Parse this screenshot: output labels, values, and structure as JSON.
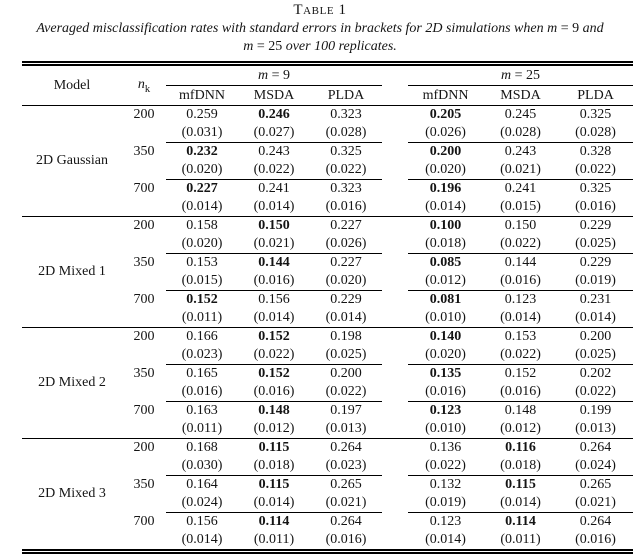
{
  "title": "Table 1",
  "caption": {
    "line1_text": "Averaged misclassification rates with standard errors in brackets for 2D simulations when ",
    "line1_math_var": "m",
    "line1_math_rest": " = 9",
    "line1_tail": " and",
    "line2_math_var": "m",
    "line2_math_rest": " = 25",
    "line2_tail": " over 100 replicates."
  },
  "table": {
    "header": {
      "model": "Model",
      "nk_var": "n",
      "nk_sub": "k",
      "m9_var": "m",
      "m9_rest": " = 9",
      "m25_var": "m",
      "m25_rest": " = 25",
      "methods": [
        "mfDNN",
        "MSDA",
        "PLDA"
      ]
    },
    "groups": [
      {
        "model": "2D Gaussian",
        "rows": [
          {
            "nk": "200",
            "m9": [
              "0.259",
              "0.246",
              "0.323"
            ],
            "m9_bold": 1,
            "m9_se": [
              "(0.031)",
              "(0.027)",
              "(0.028)"
            ],
            "m25": [
              "0.205",
              "0.245",
              "0.325"
            ],
            "m25_bold": 0,
            "m25_se": [
              "(0.026)",
              "(0.028)",
              "(0.028)"
            ]
          },
          {
            "nk": "350",
            "m9": [
              "0.232",
              "0.243",
              "0.325"
            ],
            "m9_bold": 0,
            "m9_se": [
              "(0.020)",
              "(0.022)",
              "(0.022)"
            ],
            "m25": [
              "0.200",
              "0.243",
              "0.328"
            ],
            "m25_bold": 0,
            "m25_se": [
              "(0.020)",
              "(0.021)",
              "(0.022)"
            ]
          },
          {
            "nk": "700",
            "m9": [
              "0.227",
              "0.241",
              "0.323"
            ],
            "m9_bold": 0,
            "m9_se": [
              "(0.014)",
              "(0.014)",
              "(0.016)"
            ],
            "m25": [
              "0.196",
              "0.241",
              "0.325"
            ],
            "m25_bold": 0,
            "m25_se": [
              "(0.014)",
              "(0.015)",
              "(0.016)"
            ]
          }
        ]
      },
      {
        "model": "2D Mixed 1",
        "rows": [
          {
            "nk": "200",
            "m9": [
              "0.158",
              "0.150",
              "0.227"
            ],
            "m9_bold": 1,
            "m9_se": [
              "(0.020)",
              "(0.021)",
              "(0.026)"
            ],
            "m25": [
              "0.100",
              "0.150",
              "0.229"
            ],
            "m25_bold": 0,
            "m25_se": [
              "(0.018)",
              "(0.022)",
              "(0.025)"
            ]
          },
          {
            "nk": "350",
            "m9": [
              "0.153",
              "0.144",
              "0.227"
            ],
            "m9_bold": 1,
            "m9_se": [
              "(0.015)",
              "(0.016)",
              "(0.020)"
            ],
            "m25": [
              "0.085",
              "0.144",
              "0.229"
            ],
            "m25_bold": 0,
            "m25_se": [
              "(0.012)",
              "(0.016)",
              "(0.019)"
            ]
          },
          {
            "nk": "700",
            "m9": [
              "0.152",
              "0.156",
              "0.229"
            ],
            "m9_bold": 0,
            "m9_se": [
              "(0.011)",
              "(0.014)",
              "(0.014)"
            ],
            "m25": [
              "0.081",
              "0.123",
              "0.231"
            ],
            "m25_bold": 0,
            "m25_se": [
              "(0.010)",
              "(0.014)",
              "(0.014)"
            ]
          }
        ]
      },
      {
        "model": "2D Mixed 2",
        "rows": [
          {
            "nk": "200",
            "m9": [
              "0.166",
              "0.152",
              "0.198"
            ],
            "m9_bold": 1,
            "m9_se": [
              "(0.023)",
              "(0.022)",
              "(0.025)"
            ],
            "m25": [
              "0.140",
              "0.153",
              "0.200"
            ],
            "m25_bold": 0,
            "m25_se": [
              "(0.020)",
              "(0.022)",
              "(0.025)"
            ]
          },
          {
            "nk": "350",
            "m9": [
              "0.165",
              "0.152",
              "0.200"
            ],
            "m9_bold": 1,
            "m9_se": [
              "(0.016)",
              "(0.016)",
              "(0.022)"
            ],
            "m25": [
              "0.135",
              "0.152",
              "0.202"
            ],
            "m25_bold": 0,
            "m25_se": [
              "(0.016)",
              "(0.016)",
              "(0.022)"
            ]
          },
          {
            "nk": "700",
            "m9": [
              "0.163",
              "0.148",
              "0.197"
            ],
            "m9_bold": 1,
            "m9_se": [
              "(0.011)",
              "(0.012)",
              "(0.013)"
            ],
            "m25": [
              "0.123",
              "0.148",
              "0.199"
            ],
            "m25_bold": 0,
            "m25_se": [
              "(0.010)",
              "(0.012)",
              "(0.013)"
            ]
          }
        ]
      },
      {
        "model": "2D Mixed 3",
        "rows": [
          {
            "nk": "200",
            "m9": [
              "0.168",
              "0.115",
              "0.264"
            ],
            "m9_bold": 1,
            "m9_se": [
              "(0.030)",
              "(0.018)",
              "(0.023)"
            ],
            "m25": [
              "0.136",
              "0.116",
              "0.264"
            ],
            "m25_bold": 1,
            "m25_se": [
              "(0.022)",
              "(0.018)",
              "(0.024)"
            ]
          },
          {
            "nk": "350",
            "m9": [
              "0.164",
              "0.115",
              "0.265"
            ],
            "m9_bold": 1,
            "m9_se": [
              "(0.024)",
              "(0.014)",
              "(0.021)"
            ],
            "m25": [
              "0.132",
              "0.115",
              "0.265"
            ],
            "m25_bold": 1,
            "m25_se": [
              "(0.019)",
              "(0.014)",
              "(0.021)"
            ]
          },
          {
            "nk": "700",
            "m9": [
              "0.156",
              "0.114",
              "0.264"
            ],
            "m9_bold": 1,
            "m9_se": [
              "(0.014)",
              "(0.011)",
              "(0.016)"
            ],
            "m25": [
              "0.123",
              "0.114",
              "0.264"
            ],
            "m25_bold": 1,
            "m25_se": [
              "(0.014)",
              "(0.011)",
              "(0.016)"
            ]
          }
        ]
      }
    ]
  }
}
